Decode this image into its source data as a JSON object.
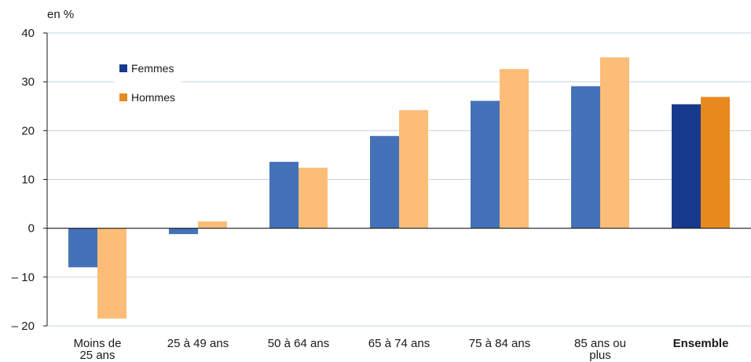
{
  "chart_data": {
    "type": "bar",
    "unit_label": "en %",
    "categories": [
      [
        "Moins de",
        "25 ans"
      ],
      [
        "25 à 49 ans"
      ],
      [
        "50 à 64 ans"
      ],
      [
        "65 à 74 ans"
      ],
      [
        "75 à 84 ans"
      ],
      [
        "85 ans ou",
        "plus"
      ],
      [
        "Ensemble"
      ]
    ],
    "bold_categories": [
      "Ensemble"
    ],
    "series": [
      {
        "name": "Femmes",
        "values": [
          -8,
          -1.2,
          13.6,
          18.9,
          26.1,
          29.1,
          25.4
        ],
        "color": "#4472b8",
        "highlight_color": "#173a8f"
      },
      {
        "name": "Hommes",
        "values": [
          -18.5,
          1.4,
          12.4,
          24.2,
          32.6,
          35.0,
          26.9
        ],
        "color": "#fbbd77",
        "highlight_color": "#e8891e"
      }
    ],
    "highlight_category": "Ensemble",
    "ylim": [
      -20,
      40
    ],
    "yticks": [
      -20,
      -10,
      0,
      10,
      20,
      30,
      40
    ],
    "ytick_labels": [
      "– 20",
      "– 10",
      "0",
      "10",
      "20",
      "30",
      "40"
    ],
    "grid": true,
    "grid_color": "#c5d3e2",
    "legend_position": "top-left"
  }
}
